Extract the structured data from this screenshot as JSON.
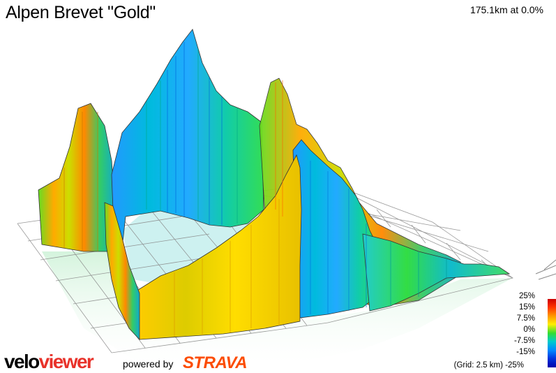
{
  "header": {
    "title": "Alpen Brevet \"Gold\"",
    "status": "175.1km at 0.0%"
  },
  "legend": {
    "labels": [
      "25%",
      "15%",
      "7.5%",
      "0%",
      "-7.5%",
      "-15%",
      "-25%"
    ],
    "grid_note": "(Grid: 2.5 km)",
    "scale_colors": [
      "#cc0000",
      "#ff9900",
      "#ffee00",
      "#33dd33",
      "#00cccc",
      "#0088ff",
      "#0000aa"
    ]
  },
  "branding": {
    "logo_part1": "velo",
    "logo_part2": "viewer",
    "powered_by": "powered by",
    "strava": "STRAVA",
    "logo_color": "#e8322a",
    "strava_color": "#fc4c02"
  },
  "scene": {
    "kind": "3d-elevation-profile",
    "icons": [
      "compass-icon"
    ]
  }
}
